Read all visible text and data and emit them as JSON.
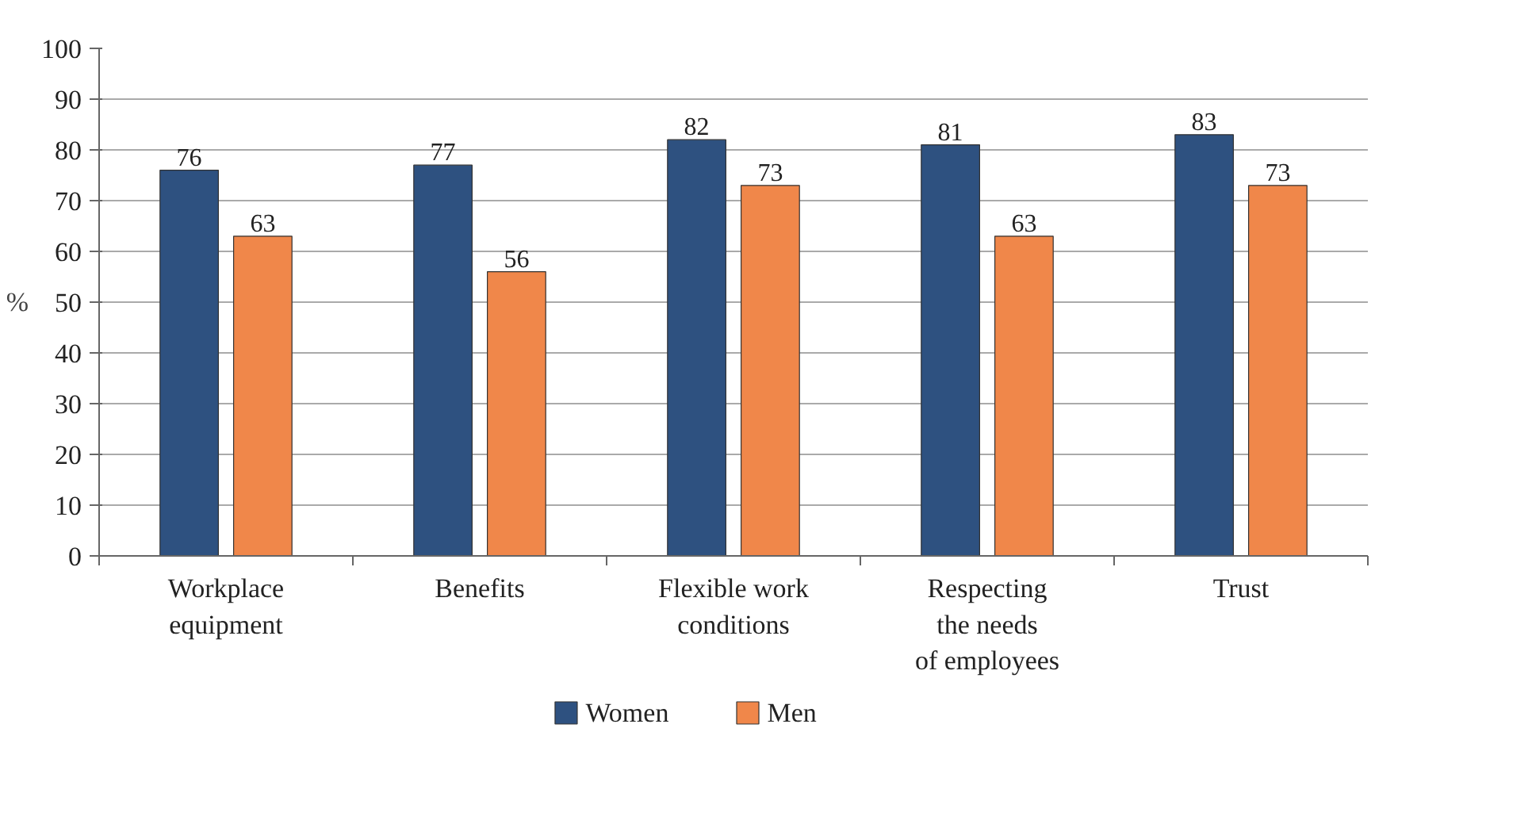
{
  "chart_data": {
    "type": "bar",
    "categories": [
      "Workplace\nequipment",
      "Benefits",
      "Flexible work\nconditions",
      "Respecting\nthe needs\nof employees",
      "Trust"
    ],
    "series": [
      {
        "name": "Women",
        "color": "#2e5180",
        "values": [
          76,
          77,
          82,
          81,
          83
        ]
      },
      {
        "name": "Men",
        "color": "#f0874a",
        "values": [
          63,
          56,
          73,
          63,
          73
        ]
      }
    ],
    "ylabel": "%",
    "ylim": [
      0,
      100
    ],
    "yticks": [
      0,
      10,
      20,
      30,
      40,
      50,
      60,
      70,
      80,
      90,
      100
    ],
    "grid": "y",
    "legend": "bottom",
    "data_labels": true
  }
}
